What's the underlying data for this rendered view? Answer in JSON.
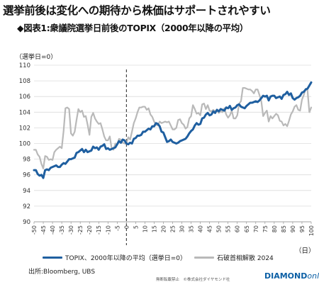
{
  "headline": "選挙前後は変化への期待から株価はサポートされやすい",
  "subtitle": "◆図表1:衆議院選挙日前後のTOPIX（2000年以降の平均）",
  "unit_label": "（選挙日=0）",
  "x_unit_label": "（日）",
  "source": "出所:Bloomberg, UBS",
  "footer_note": "無断転載禁止　©株式会社ダイヤモンド社",
  "brand": {
    "main": "DIAMOND",
    "sub": "online"
  },
  "colors": {
    "topix": "#1f5fa0",
    "ishiba": "#b9b9b9"
  },
  "chart_data": {
    "type": "line",
    "title": "衆議院選挙日前後のTOPIX（2000年以降の平均）",
    "xlabel": "（日）",
    "ylabel": "（選挙日=0）",
    "xlim": [
      -50,
      100
    ],
    "ylim": [
      90,
      110
    ],
    "grid": true,
    "vertical_marker_x": 0,
    "x_ticks": [
      -50,
      -45,
      -40,
      -35,
      -30,
      -25,
      -20,
      -15,
      -10,
      -5,
      0,
      5,
      10,
      15,
      20,
      25,
      30,
      35,
      40,
      45,
      50,
      55,
      60,
      65,
      70,
      75,
      80,
      85,
      90,
      95,
      100
    ],
    "y_ticks": [
      90,
      92,
      94,
      96,
      98,
      100,
      102,
      104,
      106,
      108,
      110
    ],
    "legend_position": "bottom",
    "series": [
      {
        "name": "TOPIX、2000年以降の平均（選挙日=0）",
        "points": [
          [
            -50,
            96.6
          ],
          [
            -49,
            96.6
          ],
          [
            -48,
            96.1
          ],
          [
            -47,
            95.9
          ],
          [
            -46,
            96.0
          ],
          [
            -45,
            95.6
          ],
          [
            -44,
            96.6
          ],
          [
            -43,
            96.7
          ],
          [
            -42,
            96.6
          ],
          [
            -41,
            96.9
          ],
          [
            -40,
            97.0
          ],
          [
            -39,
            97.1
          ],
          [
            -38,
            97.2
          ],
          [
            -37,
            97.0
          ],
          [
            -36,
            97.0
          ],
          [
            -35,
            97.3
          ],
          [
            -34,
            97.5
          ],
          [
            -33,
            97.4
          ],
          [
            -32,
            97.7
          ],
          [
            -31,
            98.0
          ],
          [
            -30,
            98.0
          ],
          [
            -29,
            98.1
          ],
          [
            -28,
            98.2
          ],
          [
            -27,
            98.8
          ],
          [
            -26,
            98.9
          ],
          [
            -25,
            99.1
          ],
          [
            -24,
            99.3
          ],
          [
            -23,
            98.9
          ],
          [
            -22,
            99.2
          ],
          [
            -21,
            98.9
          ],
          [
            -20,
            99.0
          ],
          [
            -19,
            99.1
          ],
          [
            -18,
            99.6
          ],
          [
            -17,
            99.4
          ],
          [
            -16,
            99.5
          ],
          [
            -15,
            99.2
          ],
          [
            -14,
            99.6
          ],
          [
            -13,
            99.7
          ],
          [
            -12,
            99.9
          ],
          [
            -11,
            99.3
          ],
          [
            -10,
            99.4
          ],
          [
            -9,
            99.2
          ],
          [
            -8,
            99.3
          ],
          [
            -7,
            99.4
          ],
          [
            -6,
            99.5
          ],
          [
            -5,
            99.9
          ],
          [
            -4,
            100.3
          ],
          [
            -3,
            100.1
          ],
          [
            -2,
            100.5
          ],
          [
            -1,
            100.4
          ],
          [
            0,
            100.0
          ],
          [
            1,
            99.9
          ],
          [
            2,
            100.1
          ],
          [
            3,
            100.0
          ],
          [
            4,
            100.6
          ],
          [
            5,
            100.7
          ],
          [
            6,
            101.0
          ],
          [
            7,
            101.0
          ],
          [
            8,
            101.1
          ],
          [
            9,
            101.5
          ],
          [
            10,
            101.5
          ],
          [
            11,
            101.7
          ],
          [
            12,
            101.9
          ],
          [
            13,
            101.8
          ],
          [
            14,
            102.2
          ],
          [
            15,
            102.2
          ],
          [
            16,
            102.6
          ],
          [
            17,
            102.5
          ],
          [
            18,
            102.2
          ],
          [
            19,
            101.5
          ],
          [
            20,
            101.4
          ],
          [
            21,
            100.8
          ],
          [
            22,
            100.2
          ],
          [
            23,
            100.3
          ],
          [
            24,
            100.5
          ],
          [
            25,
            100.2
          ],
          [
            26,
            100.1
          ],
          [
            27,
            100.0
          ],
          [
            28,
            100.1
          ],
          [
            29,
            100.3
          ],
          [
            30,
            100.4
          ],
          [
            31,
            100.5
          ],
          [
            32,
            100.6
          ],
          [
            33,
            100.9
          ],
          [
            34,
            101.3
          ],
          [
            35,
            101.6
          ],
          [
            36,
            101.8
          ],
          [
            37,
            102.3
          ],
          [
            38,
            102.6
          ],
          [
            39,
            102.4
          ],
          [
            40,
            102.5
          ],
          [
            41,
            103.2
          ],
          [
            42,
            103.3
          ],
          [
            43,
            103.7
          ],
          [
            44,
            103.9
          ],
          [
            45,
            103.6
          ],
          [
            46,
            103.7
          ],
          [
            47,
            104.1
          ],
          [
            48,
            103.9
          ],
          [
            49,
            104.3
          ],
          [
            50,
            104.1
          ],
          [
            51,
            104.4
          ],
          [
            52,
            104.3
          ],
          [
            53,
            104.2
          ],
          [
            54,
            104.6
          ],
          [
            55,
            104.5
          ],
          [
            56,
            104.8
          ],
          [
            57,
            104.3
          ],
          [
            58,
            104.5
          ],
          [
            59,
            104.6
          ],
          [
            60,
            104.9
          ],
          [
            61,
            105.0
          ],
          [
            62,
            104.7
          ],
          [
            63,
            104.6
          ],
          [
            64,
            104.5
          ],
          [
            65,
            104.8
          ],
          [
            66,
            105.0
          ],
          [
            67,
            105.2
          ],
          [
            68,
            105.2
          ],
          [
            69,
            105.3
          ],
          [
            70,
            105.4
          ],
          [
            71,
            105.3
          ],
          [
            72,
            105.5
          ],
          [
            73,
            105.8
          ],
          [
            74,
            106.1
          ],
          [
            75,
            106.0
          ],
          [
            76,
            106.1
          ],
          [
            77,
            105.5
          ],
          [
            78,
            106.0
          ],
          [
            79,
            106.1
          ],
          [
            80,
            106.1
          ],
          [
            81,
            105.8
          ],
          [
            82,
            105.9
          ],
          [
            83,
            106.0
          ],
          [
            84,
            105.7
          ],
          [
            85,
            106.2
          ],
          [
            86,
            106.3
          ],
          [
            87,
            106.6
          ],
          [
            88,
            106.2
          ],
          [
            89,
            106.4
          ],
          [
            90,
            105.8
          ],
          [
            91,
            105.6
          ],
          [
            92,
            105.8
          ],
          [
            93,
            105.9
          ],
          [
            94,
            106.1
          ],
          [
            95,
            106.5
          ],
          [
            96,
            106.6
          ],
          [
            97,
            106.9
          ],
          [
            98,
            107.0
          ],
          [
            99,
            107.4
          ],
          [
            100,
            107.8
          ]
        ]
      },
      {
        "name": "石破首相解散 2024",
        "points": [
          [
            -50,
            99.2
          ],
          [
            -49,
            99.2
          ],
          [
            -48,
            98.6
          ],
          [
            -47,
            98.3
          ],
          [
            -46,
            97.4
          ],
          [
            -45,
            96.8
          ],
          [
            -44,
            98.4
          ],
          [
            -43,
            98.3
          ],
          [
            -42,
            97.9
          ],
          [
            -41,
            98.0
          ],
          [
            -40,
            97.9
          ],
          [
            -39,
            98.9
          ],
          [
            -38,
            99.2
          ],
          [
            -37,
            99.4
          ],
          [
            -36,
            99.6
          ],
          [
            -35,
            99.4
          ],
          [
            -34,
            101.6
          ],
          [
            -33,
            104.5
          ],
          [
            -32,
            104.6
          ],
          [
            -31,
            104.4
          ],
          [
            -30,
            101.3
          ],
          [
            -29,
            101.0
          ],
          [
            -28,
            101.5
          ],
          [
            -27,
            103.0
          ],
          [
            -26,
            104.4
          ],
          [
            -25,
            104.0
          ],
          [
            -24,
            104.2
          ],
          [
            -23,
            103.4
          ],
          [
            -22,
            103.5
          ],
          [
            -21,
            102.4
          ],
          [
            -20,
            101.1
          ],
          [
            -19,
            103.4
          ],
          [
            -18,
            103.9
          ],
          [
            -17,
            103.2
          ],
          [
            -16,
            102.8
          ],
          [
            -15,
            102.5
          ],
          [
            -14,
            102.6
          ],
          [
            -13,
            101.8
          ],
          [
            -12,
            100.9
          ],
          [
            -11,
            100.4
          ],
          [
            -10,
            100.4
          ],
          [
            -9,
            100.9
          ],
          [
            -8,
            99.4
          ],
          [
            -7,
            99.2
          ],
          [
            -6,
            100.0
          ],
          [
            -5,
            99.9
          ],
          [
            -4,
            100.6
          ],
          [
            -3,
            100.5
          ],
          [
            -2,
            100.1
          ],
          [
            -1,
            100.0
          ],
          [
            0,
            100.0
          ],
          [
            1,
            100.8
          ],
          [
            2,
            100.5
          ],
          [
            3,
            101.5
          ],
          [
            4,
            102.6
          ],
          [
            5,
            103.2
          ],
          [
            6,
            104.0
          ],
          [
            7,
            104.6
          ],
          [
            8,
            104.6
          ],
          [
            9,
            104.7
          ],
          [
            10,
            104.7
          ],
          [
            11,
            104.3
          ],
          [
            12,
            104.5
          ],
          [
            13,
            103.7
          ],
          [
            14,
            103.4
          ],
          [
            15,
            102.8
          ],
          [
            16,
            102.4
          ],
          [
            17,
            102.3
          ],
          [
            18,
            102.8
          ],
          [
            19,
            102.6
          ],
          [
            20,
            102.7
          ],
          [
            21,
            102.8
          ],
          [
            22,
            102.7
          ],
          [
            23,
            102.8
          ],
          [
            24,
            102.3
          ],
          [
            25,
            101.8
          ],
          [
            26,
            101.8
          ],
          [
            27,
            102.0
          ],
          [
            28,
            103.0
          ],
          [
            29,
            103.1
          ],
          [
            30,
            102.6
          ],
          [
            31,
            102.4
          ],
          [
            32,
            101.9
          ],
          [
            33,
            102.1
          ],
          [
            34,
            103.2
          ],
          [
            35,
            103.5
          ],
          [
            36,
            104.9
          ],
          [
            37,
            104.4
          ],
          [
            38,
            103.8
          ],
          [
            39,
            103.9
          ],
          [
            40,
            103.6
          ],
          [
            41,
            105.0
          ],
          [
            42,
            105.1
          ],
          [
            43,
            104.4
          ],
          [
            44,
            104.9
          ],
          [
            45,
            104.2
          ],
          [
            46,
            104.1
          ],
          [
            47,
            104.3
          ],
          [
            48,
            104.1
          ],
          [
            49,
            104.3
          ],
          [
            50,
            103.9
          ],
          [
            51,
            104.1
          ],
          [
            52,
            104.0
          ],
          [
            53,
            104.5
          ],
          [
            54,
            103.7
          ],
          [
            55,
            103.3
          ],
          [
            56,
            103.6
          ],
          [
            57,
            104.2
          ],
          [
            58,
            103.2
          ],
          [
            59,
            103.2
          ],
          [
            60,
            103.6
          ],
          [
            61,
            105.1
          ],
          [
            62,
            105.4
          ],
          [
            63,
            107.1
          ],
          [
            64,
            107.1
          ],
          [
            65,
            107.0
          ],
          [
            66,
            106.9
          ],
          [
            67,
            106.9
          ],
          [
            68,
            106.7
          ],
          [
            69,
            106.4
          ],
          [
            70,
            106.9
          ],
          [
            71,
            106.9
          ],
          [
            72,
            106.2
          ],
          [
            73,
            105.4
          ],
          [
            74,
            103.5
          ],
          [
            75,
            103.9
          ],
          [
            76,
            104.2
          ],
          [
            77,
            102.8
          ],
          [
            78,
            103.5
          ],
          [
            79,
            103.2
          ],
          [
            80,
            103.5
          ],
          [
            81,
            103.8
          ],
          [
            82,
            103.6
          ],
          [
            83,
            102.9
          ],
          [
            84,
            102.8
          ],
          [
            85,
            102.3
          ],
          [
            86,
            102.5
          ],
          [
            87,
            102.2
          ],
          [
            88,
            102.9
          ],
          [
            89,
            103.7
          ],
          [
            90,
            104.1
          ],
          [
            91,
            104.7
          ],
          [
            92,
            104.9
          ],
          [
            93,
            104.3
          ],
          [
            94,
            104.2
          ],
          [
            95,
            105.6
          ],
          [
            96,
            106.2
          ],
          [
            97,
            107.0
          ],
          [
            98,
            106.8
          ],
          [
            99,
            104.0
          ],
          [
            100,
            104.6
          ]
        ]
      }
    ]
  }
}
